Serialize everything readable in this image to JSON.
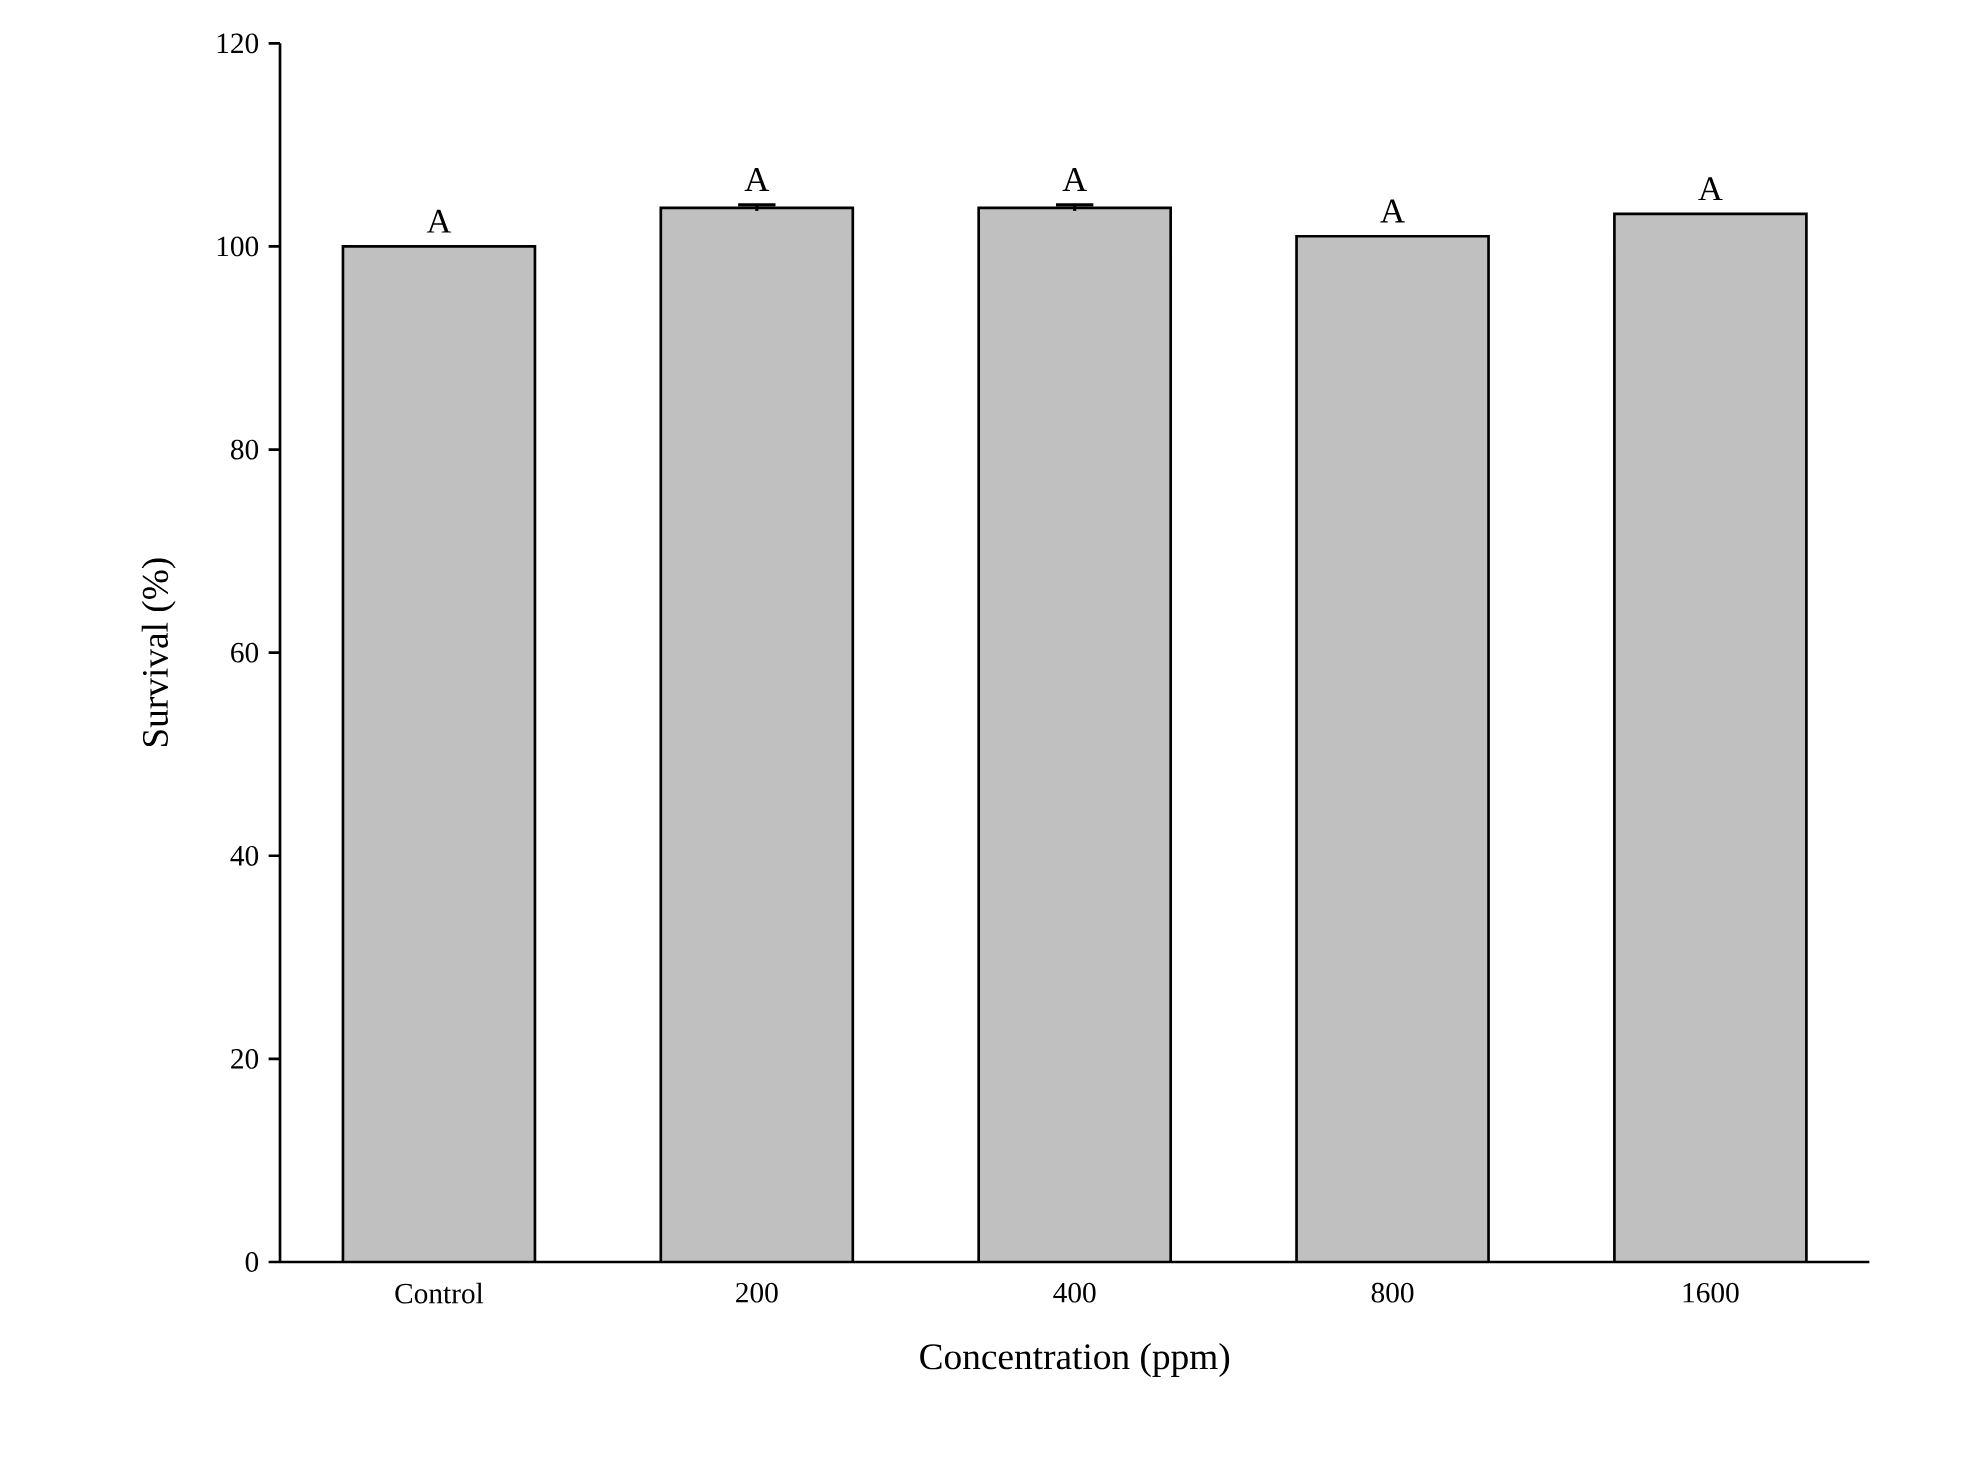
{
  "chart_data": {
    "type": "bar",
    "xlabel": "Concentration (ppm)",
    "ylabel": "Survival (%)",
    "categories": [
      "Control",
      "200",
      "400",
      "800",
      "1600"
    ],
    "values": [
      100,
      103.8,
      103.8,
      101.0,
      103.2
    ],
    "errors": [
      null,
      0.3,
      0.3,
      null,
      null
    ],
    "color": "#c0c0c0",
    "ylim": [
      0,
      120
    ],
    "yticks": [
      0,
      20,
      40,
      60,
      80,
      100,
      120
    ],
    "grid": false,
    "annotations": [
      {
        "text": "A",
        "x": "Control",
        "y": 100
      },
      {
        "text": "A",
        "x": "200",
        "y": 104.1
      },
      {
        "text": "A",
        "x": "400",
        "y": 104.1
      },
      {
        "text": "A",
        "x": "800",
        "y": 101.0
      },
      {
        "text": "A",
        "x": "1600",
        "y": 103.2
      }
    ]
  }
}
